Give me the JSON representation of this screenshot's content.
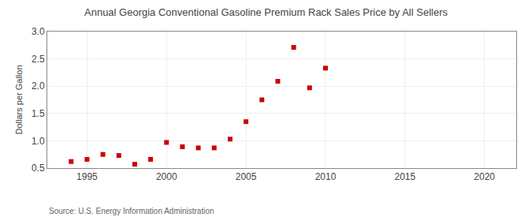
{
  "chart_data": {
    "type": "scatter",
    "title": "Annual Georgia Conventional Gasoline Premium Rack Sales Price by All Sellers",
    "ylabel": "Dollars per Gallon",
    "annotations": [
      "Source: U.S. Energy Information Administration"
    ],
    "x": [
      1994,
      1995,
      1996,
      1997,
      1998,
      1999,
      2000,
      2001,
      2002,
      2003,
      2004,
      2005,
      2006,
      2007,
      2008,
      2009,
      2010
    ],
    "values": [
      0.62,
      0.66,
      0.75,
      0.73,
      0.57,
      0.66,
      0.97,
      0.89,
      0.87,
      0.87,
      1.03,
      1.35,
      1.75,
      2.09,
      2.71,
      1.97,
      2.33
    ],
    "color": "#cc0000",
    "marker": "square",
    "xlim": [
      1992.5,
      2022
    ],
    "xticks": [
      1995,
      2000,
      2005,
      2010,
      2015,
      2020
    ],
    "ylim": [
      0.5,
      3.0
    ],
    "yticks": [
      0.5,
      {
        "value": 1.0,
        "label": "1.0"
      },
      1.5,
      {
        "value": 2.0,
        "label": "2.0"
      },
      2.5,
      {
        "value": 3.0,
        "label": "3.0"
      }
    ],
    "grid": true
  }
}
